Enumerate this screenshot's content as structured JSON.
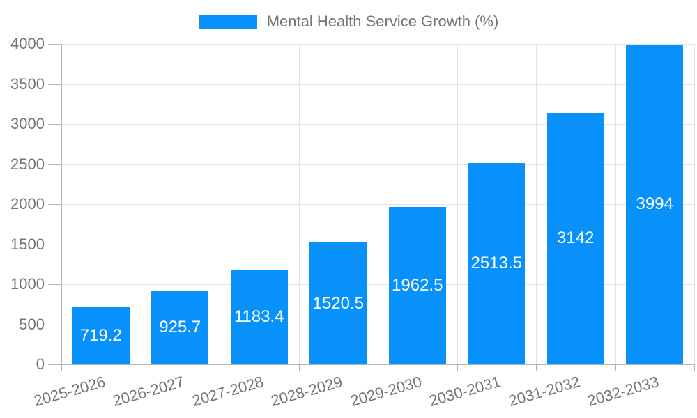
{
  "chart_data": {
    "type": "bar",
    "title": "Mental Health Service Growth (%)",
    "categories": [
      "2025-2026",
      "2026-2027",
      "2027-2028",
      "2028-2029",
      "2029-2030",
      "2030-2031",
      "2031-2032",
      "2032-2033"
    ],
    "values": [
      719.2,
      925.7,
      1183.4,
      1520.5,
      1962.5,
      2513.5,
      3142,
      3994
    ],
    "value_labels": [
      "719.2",
      "925.7",
      "1183.4",
      "1520.5",
      "1962.5",
      "2513.5",
      "3142",
      "3994"
    ],
    "xlabel": "",
    "ylabel": "",
    "ylim": [
      0,
      4000
    ],
    "ytick_step": 500,
    "ytick_labels": [
      "0",
      "500",
      "1000",
      "1500",
      "2000",
      "2500",
      "3000",
      "3500",
      "4000"
    ],
    "grid": "on",
    "legend_position": "top-center",
    "colors": {
      "bar": "#0991fb",
      "grid": "#e3e3e3",
      "axis": "#b3b3b3",
      "tick_text": "#757575",
      "value_label": "#ffffff",
      "background": "#ffffff"
    }
  }
}
